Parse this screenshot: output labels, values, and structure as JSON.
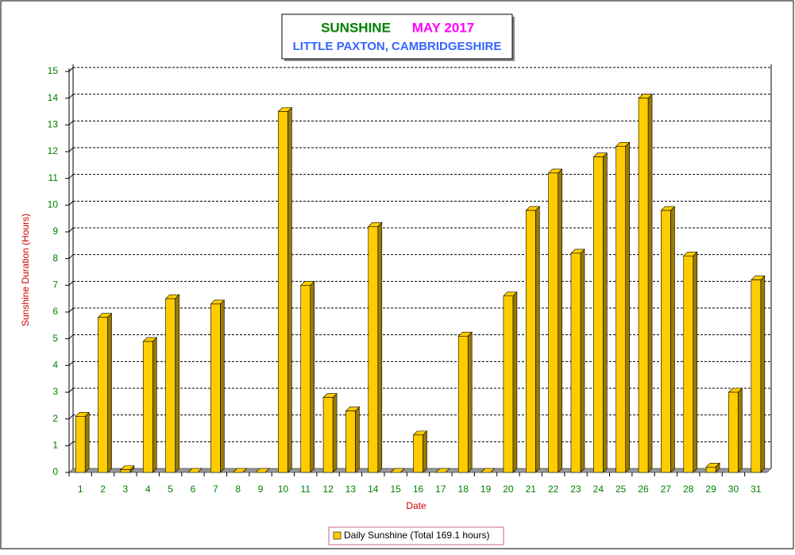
{
  "chart_data": {
    "type": "bar3d",
    "title": "SUNSHINE",
    "title_period": "MAY 2017",
    "subtitle": "LITTLE PAXTON, CAMBRIDGESHIRE",
    "x_label": "Date",
    "y_label": "Sunshine Duration (Hours)",
    "categories": [
      "1",
      "2",
      "3",
      "4",
      "5",
      "6",
      "7",
      "8",
      "9",
      "10",
      "11",
      "12",
      "13",
      "14",
      "15",
      "16",
      "17",
      "18",
      "19",
      "20",
      "21",
      "22",
      "23",
      "24",
      "25",
      "26",
      "27",
      "28",
      "29",
      "30",
      "31"
    ],
    "series": [
      {
        "name": "Daily Sunshine (Total 169.1 hours)",
        "color": "#ffcc00",
        "values": [
          2.1,
          5.8,
          0.1,
          4.9,
          6.5,
          0,
          6.3,
          0,
          0,
          13.5,
          7.0,
          2.8,
          2.3,
          9.2,
          0,
          1.4,
          0,
          5.1,
          0,
          6.6,
          9.8,
          11.2,
          8.2,
          11.8,
          12.2,
          14.0,
          9.8,
          8.1,
          0.2,
          3.0,
          7.2
        ]
      }
    ],
    "ylim": [
      0,
      15
    ],
    "yticks": [
      0,
      1,
      2,
      3,
      4,
      5,
      6,
      7,
      8,
      9,
      10,
      11,
      12,
      13,
      14,
      15
    ],
    "grid": true
  }
}
